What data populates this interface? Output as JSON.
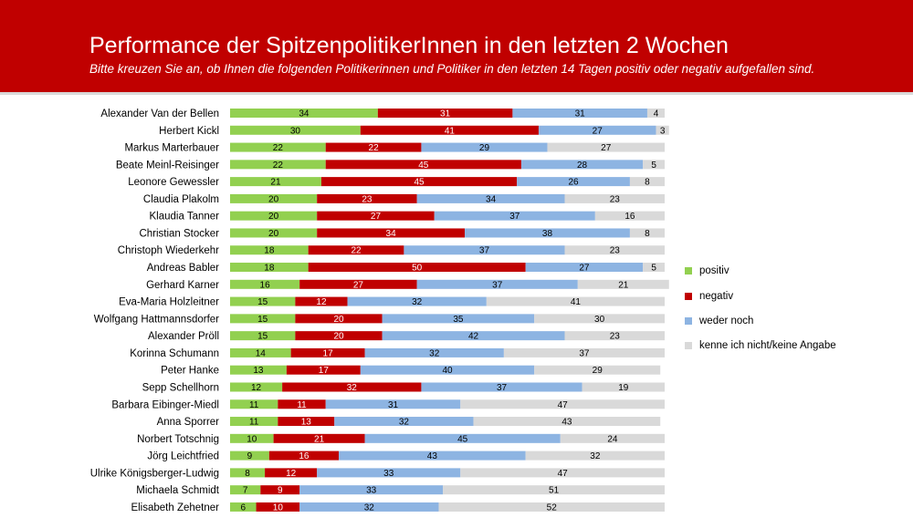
{
  "title": "Performance der SpitzenpolitikerInnen in den letzten 2 Wochen",
  "subtitle": "Bitte kreuzen Sie an, ob Ihnen die folgenden Politikerinnen und Politiker in den letzten 14 Tagen positiv oder negativ aufgefallen sind.",
  "chart_data": {
    "type": "bar",
    "orientation": "horizontal-stacked-100",
    "xlim": [
      0,
      100
    ],
    "grid": false,
    "legend_position": "right",
    "categories": [
      "Alexander Van der Bellen",
      "Herbert Kickl",
      "Markus Marterbauer",
      "Beate Meinl-Reisinger",
      "Leonore Gewessler",
      "Claudia Plakolm",
      "Klaudia Tanner",
      "Christian Stocker",
      "Christoph Wiederkehr",
      "Andreas Babler",
      "Gerhard Karner",
      "Eva-Maria Holzleitner",
      "Wolfgang Hattmannsdorfer",
      "Alexander Pröll",
      "Korinna Schumann",
      "Peter Hanke",
      "Sepp Schellhorn",
      "Barbara Eibinger-Miedl",
      "Anna Sporrer",
      "Norbert Totschnig",
      "Jörg Leichtfried",
      "Ulrike Königsberger-Ludwig",
      "Michaela Schmidt",
      "Elisabeth Zehetner"
    ],
    "series": [
      {
        "name": "positiv",
        "color": "#92d050",
        "label_color": "#000000",
        "values": [
          34,
          30,
          22,
          22,
          21,
          20,
          20,
          20,
          18,
          18,
          16,
          15,
          15,
          15,
          14,
          13,
          12,
          11,
          11,
          10,
          9,
          8,
          7,
          6
        ]
      },
      {
        "name": "negativ",
        "color": "#c00000",
        "label_color": "#ffffff",
        "values": [
          31,
          41,
          22,
          45,
          45,
          23,
          27,
          34,
          22,
          50,
          27,
          12,
          20,
          20,
          17,
          17,
          32,
          11,
          13,
          21,
          16,
          12,
          9,
          10
        ]
      },
      {
        "name": "weder noch",
        "color": "#8db4e2",
        "label_color": "#000000",
        "values": [
          31,
          27,
          29,
          28,
          26,
          34,
          37,
          38,
          37,
          27,
          37,
          32,
          35,
          42,
          32,
          40,
          37,
          31,
          32,
          45,
          43,
          33,
          33,
          32
        ]
      },
      {
        "name": "kenne ich nicht/keine Angabe",
        "color": "#d9d9d9",
        "label_color": "#000000",
        "values": [
          4,
          3,
          27,
          5,
          8,
          23,
          16,
          8,
          23,
          5,
          21,
          41,
          30,
          23,
          37,
          29,
          19,
          47,
          43,
          24,
          32,
          47,
          51,
          52
        ]
      }
    ]
  }
}
